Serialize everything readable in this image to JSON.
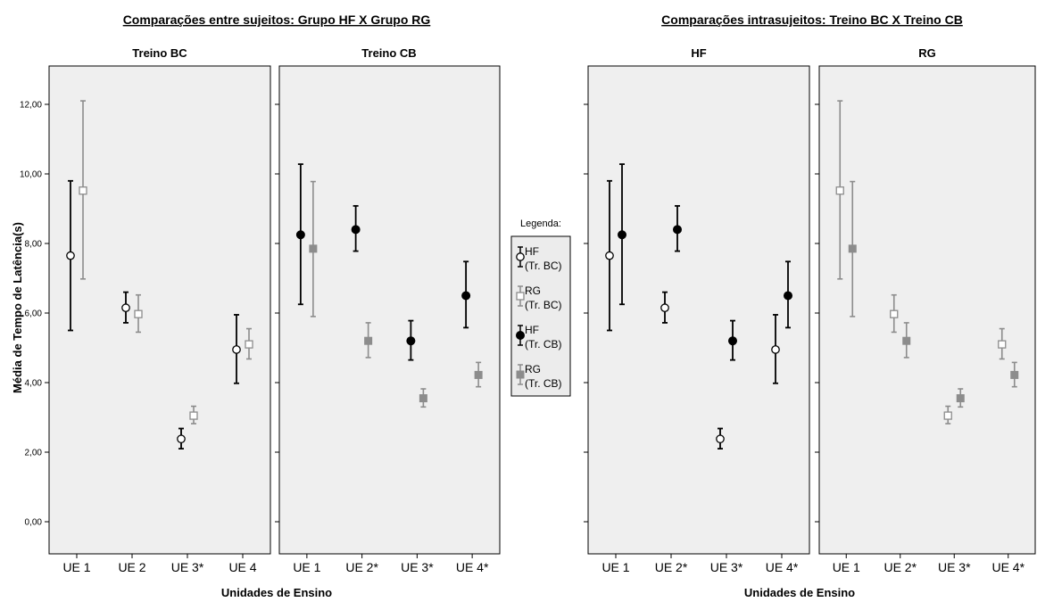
{
  "chart_data": {
    "type": "errorbar",
    "ylabel": "Média de Tempo de Latência(s)",
    "ylim": [
      0,
      12
    ],
    "yticks": [
      "0,00",
      "2,00",
      "4,00",
      "6,00",
      "8,00",
      "10,00",
      "12,00"
    ],
    "ytick_values": [
      0,
      2,
      4,
      6,
      8,
      10,
      12
    ],
    "legend_title": "Legenda:",
    "series_styles": {
      "HF_BC": {
        "name": "HF (Tr. BC)",
        "line1": "HF",
        "line2": "(Tr. BC)",
        "marker": "circle-open",
        "color": "#000000"
      },
      "RG_BC": {
        "name": "RG (Tr. BC)",
        "line1": "RG",
        "line2": "(Tr. BC)",
        "marker": "square-open",
        "color": "#8c8c8c"
      },
      "HF_CB": {
        "name": "HF (Tr. CB)",
        "line1": "HF",
        "line2": "(Tr. CB)",
        "marker": "circle-filled",
        "color": "#000000"
      },
      "RG_CB": {
        "name": "RG (Tr. CB)",
        "line1": "RG",
        "line2": "(Tr. CB)",
        "marker": "square-filled",
        "color": "#8c8c8c"
      }
    },
    "groups": [
      {
        "title": "Comparações entre sujeitos: Grupo HF X Grupo RG",
        "xlabel": "Unidades de Ensino",
        "panels": [
          {
            "title": "Treino BC",
            "categories": [
              "UE 1",
              "UE 2",
              "UE 3*",
              "UE 4"
            ],
            "series": [
              {
                "style": "HF_BC",
                "mean": [
                  7.65,
                  6.15,
                  2.38,
                  4.95
                ],
                "low": [
                  5.5,
                  5.72,
                  2.1,
                  3.98
                ],
                "high": [
                  9.8,
                  6.6,
                  2.68,
                  5.95
                ]
              },
              {
                "style": "RG_BC",
                "mean": [
                  9.52,
                  5.97,
                  3.05,
                  5.1
                ],
                "low": [
                  6.98,
                  5.45,
                  2.82,
                  4.68
                ],
                "high": [
                  12.1,
                  6.52,
                  3.32,
                  5.55
                ]
              }
            ]
          },
          {
            "title": "Treino CB",
            "categories": [
              "UE 1",
              "UE 2*",
              "UE 3*",
              "UE 4*"
            ],
            "series": [
              {
                "style": "HF_CB",
                "mean": [
                  8.25,
                  8.4,
                  5.2,
                  6.5
                ],
                "low": [
                  6.25,
                  7.78,
                  4.65,
                  5.58
                ],
                "high": [
                  10.28,
                  9.08,
                  5.78,
                  7.48
                ]
              },
              {
                "style": "RG_CB",
                "mean": [
                  7.85,
                  5.2,
                  3.55,
                  4.22
                ],
                "low": [
                  5.9,
                  4.72,
                  3.3,
                  3.88
                ],
                "high": [
                  9.78,
                  5.72,
                  3.82,
                  4.58
                ]
              }
            ]
          }
        ]
      },
      {
        "title": "Comparações intrasujeitos: Treino BC X Treino CB",
        "xlabel": "Unidades de Ensino",
        "panels": [
          {
            "title": "HF",
            "categories": [
              "UE 1",
              "UE 2*",
              "UE 3*",
              "UE 4*"
            ],
            "series": [
              {
                "style": "HF_BC",
                "mean": [
                  7.65,
                  6.15,
                  2.38,
                  4.95
                ],
                "low": [
                  5.5,
                  5.72,
                  2.1,
                  3.98
                ],
                "high": [
                  9.8,
                  6.6,
                  2.68,
                  5.95
                ]
              },
              {
                "style": "HF_CB",
                "mean": [
                  8.25,
                  8.4,
                  5.2,
                  6.5
                ],
                "low": [
                  6.25,
                  7.78,
                  4.65,
                  5.58
                ],
                "high": [
                  10.28,
                  9.08,
                  5.78,
                  7.48
                ]
              }
            ]
          },
          {
            "title": "RG",
            "categories": [
              "UE 1",
              "UE 2*",
              "UE 3*",
              "UE 4*"
            ],
            "series": [
              {
                "style": "RG_BC",
                "mean": [
                  9.52,
                  5.97,
                  3.05,
                  5.1
                ],
                "low": [
                  6.98,
                  5.45,
                  2.82,
                  4.68
                ],
                "high": [
                  12.1,
                  6.52,
                  3.32,
                  5.55
                ]
              },
              {
                "style": "RG_CB",
                "mean": [
                  7.85,
                  5.2,
                  3.55,
                  4.22
                ],
                "low": [
                  5.9,
                  4.72,
                  3.3,
                  3.88
                ],
                "high": [
                  9.78,
                  5.72,
                  3.82,
                  4.58
                ]
              }
            ]
          }
        ]
      }
    ],
    "legend_order": [
      "HF_BC",
      "RG_BC",
      "HF_CB",
      "RG_CB"
    ],
    "grid": false,
    "legend_position": "center"
  }
}
